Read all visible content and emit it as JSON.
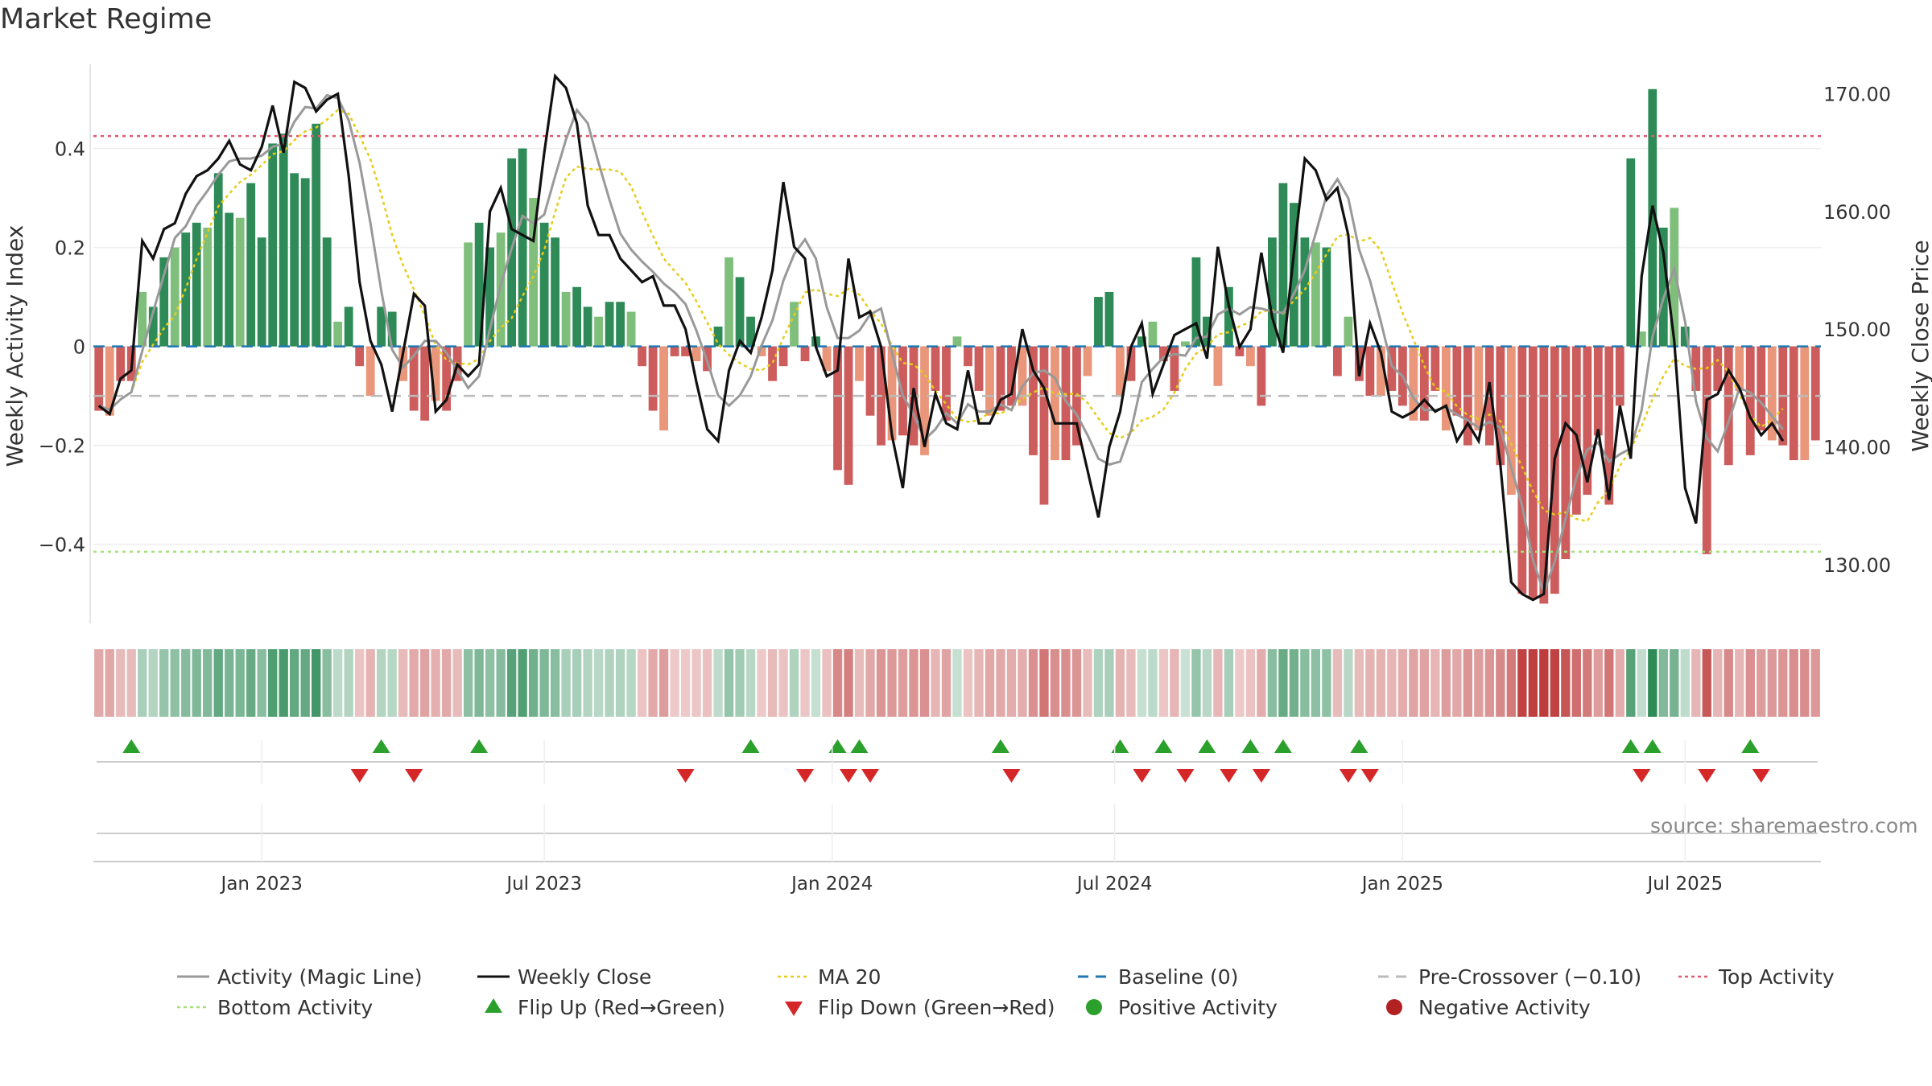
{
  "title": "Market Regime",
  "source": "source: sharemaestro.com",
  "colors": {
    "green_strong": "#2e8b57",
    "green_light": "#7fbf7b",
    "red_strong": "#cd5c5c",
    "red_light": "#e9967a",
    "close": "#111111",
    "activity": "#999999",
    "ma20": "#e6cc1a",
    "baseline": "#1f77b4",
    "precross": "#bbbbbb",
    "top": "#e05a6e",
    "bottom": "#a6e07a",
    "flip_up": "#2ca02c",
    "flip_down": "#d62728"
  },
  "chart_data": {
    "type": "bar",
    "title": "Market Regime",
    "ylabel": "Weekly Activity Index",
    "y2label": "Weekly Close Price",
    "ylim": [
      -0.56,
      0.57
    ],
    "y2lim": [
      125.0,
      172.5
    ],
    "yticks": [
      -0.4,
      -0.2,
      0,
      0.2,
      0.4
    ],
    "ytick_labels": [
      "−0.4",
      "−0.2",
      "0",
      "0.2",
      "0.4"
    ],
    "y2ticks": [
      130,
      140,
      150,
      160,
      170
    ],
    "y2tick_labels": [
      "130.00",
      "140.00",
      "150.00",
      "160.00",
      "170.00"
    ],
    "x_ticks": [
      {
        "label": "Jan 2023",
        "week": 15
      },
      {
        "label": "Jul 2023",
        "week": 41
      },
      {
        "label": "Jan 2024",
        "week": 67.5
      },
      {
        "label": "Jul 2024",
        "week": 93.5
      },
      {
        "label": "Jan 2025",
        "week": 120
      },
      {
        "label": "Jul 2025",
        "week": 146
      }
    ],
    "lines": {
      "baseline": 0,
      "pre_crossover": -0.1,
      "top_activity": 0.425,
      "bottom_activity": -0.415
    },
    "activity": [
      -0.13,
      -0.14,
      -0.07,
      -0.07,
      0.11,
      0.08,
      0.18,
      0.2,
      0.23,
      0.25,
      0.24,
      0.35,
      0.27,
      0.26,
      0.33,
      0.22,
      0.41,
      0.43,
      0.35,
      0.34,
      0.45,
      0.22,
      0.05,
      0.08,
      -0.04,
      -0.1,
      0.08,
      0.07,
      -0.07,
      -0.13,
      -0.15,
      -0.11,
      -0.13,
      -0.07,
      0.21,
      0.25,
      0.2,
      0.23,
      0.38,
      0.4,
      0.3,
      0.25,
      0.22,
      0.11,
      0.12,
      0.08,
      0.06,
      0.09,
      0.09,
      0.07,
      -0.04,
      -0.13,
      -0.17,
      -0.02,
      -0.02,
      -0.03,
      -0.05,
      0.04,
      0.18,
      0.14,
      0.06,
      -0.02,
      -0.07,
      -0.04,
      0.09,
      -0.03,
      0.02,
      -0.05,
      -0.25,
      -0.28,
      -0.07,
      -0.14,
      -0.2,
      -0.19,
      -0.18,
      -0.2,
      -0.22,
      -0.09,
      -0.15,
      0.02,
      -0.04,
      -0.09,
      -0.14,
      -0.13,
      -0.12,
      -0.12,
      -0.22,
      -0.32,
      -0.23,
      -0.23,
      -0.2,
      -0.06,
      0.1,
      0.11,
      -0.1,
      -0.07,
      0.02,
      0.05,
      -0.03,
      -0.09,
      0.01,
      0.18,
      0.06,
      -0.08,
      0.12,
      -0.02,
      -0.04,
      -0.12,
      0.22,
      0.33,
      0.29,
      0.22,
      0.21,
      0.2,
      -0.06,
      0.06,
      -0.07,
      -0.1,
      -0.1,
      -0.09,
      -0.12,
      -0.15,
      -0.15,
      -0.09,
      -0.17,
      -0.14,
      -0.2,
      -0.17,
      -0.2,
      -0.24,
      -0.3,
      -0.5,
      -0.51,
      -0.52,
      -0.5,
      -0.43,
      -0.34,
      -0.3,
      -0.18,
      -0.32,
      -0.12,
      0.38,
      0.03,
      0.52,
      0.24,
      0.28,
      0.04,
      -0.09,
      -0.42,
      -0.09,
      -0.24,
      -0.09,
      -0.22,
      -0.17,
      -0.19,
      -0.2,
      -0.23,
      -0.23,
      -0.19
    ],
    "weekly_close": [
      143.5,
      142.8,
      145.8,
      146.5,
      157.5,
      156.0,
      158.5,
      159.0,
      161.5,
      163.0,
      163.5,
      164.5,
      166.0,
      164.0,
      163.5,
      165.5,
      169.0,
      165.0,
      171.0,
      170.5,
      168.5,
      169.5,
      170.0,
      163.0,
      154.0,
      149.0,
      147.0,
      143.0,
      148.0,
      153.0,
      152.0,
      143.0,
      144.0,
      147.0,
      146.0,
      147.0,
      160.0,
      162.0,
      158.5,
      158.0,
      157.5,
      165.0,
      171.5,
      170.5,
      167.5,
      160.5,
      158.0,
      158.0,
      156.0,
      155.0,
      154.0,
      154.5,
      152.0,
      152.0,
      150.0,
      145.5,
      141.5,
      140.5,
      146.5,
      149.0,
      148.0,
      151.0,
      155.0,
      162.5,
      157.0,
      156.0,
      148.5,
      146.0,
      146.5,
      156.0,
      151.0,
      151.5,
      148.5,
      141.0,
      136.5,
      145.0,
      140.0,
      144.5,
      142.0,
      141.5,
      146.5,
      142.0,
      142.0,
      144.0,
      144.5,
      150.0,
      146.5,
      145.0,
      142.0,
      142.0,
      142.0,
      138.0,
      134.0,
      140.0,
      143.0,
      148.5,
      150.5,
      144.5,
      147.0,
      149.5,
      150.0,
      150.5,
      147.5,
      157.0,
      152.0,
      148.5,
      150.0,
      156.5,
      151.0,
      148.0,
      156.5,
      164.5,
      163.5,
      161.0,
      162.0,
      158.0,
      146.0,
      150.5,
      148.0,
      143.0,
      142.5,
      143.0,
      144.0,
      143.0,
      143.5,
      140.5,
      142.0,
      140.5,
      145.5,
      138.5,
      128.5,
      127.5,
      127.0,
      127.5,
      139.0,
      142.0,
      141.0,
      137.0,
      141.5,
      135.5,
      143.5,
      139.0,
      154.5,
      160.5,
      156.5,
      149.0,
      136.5,
      133.5,
      144.0,
      144.5,
      146.5,
      145.0,
      142.5,
      141.0,
      142.0,
      140.5
    ]
  },
  "flips": {
    "up_weeks": [
      3,
      26,
      35,
      60,
      68,
      70,
      83,
      94,
      98,
      102,
      106,
      109,
      116,
      141,
      143,
      152
    ],
    "down_weeks": [
      24,
      29,
      54,
      65,
      69,
      71,
      84,
      96,
      100,
      104,
      107,
      115,
      117,
      142,
      148,
      153
    ]
  },
  "legend": [
    {
      "name": "legend-activity",
      "label": "Activity (Magic Line)",
      "sym": "line",
      "color": "#999999"
    },
    {
      "name": "legend-close",
      "label": "Weekly Close",
      "sym": "line",
      "color": "#111111"
    },
    {
      "name": "legend-ma20",
      "label": "MA 20",
      "sym": "dotted",
      "color": "#e6cc1a"
    },
    {
      "name": "legend-baseline",
      "label": "Baseline (0)",
      "sym": "dashed",
      "color": "#1f77b4"
    },
    {
      "name": "legend-precross",
      "label": "Pre-Crossover (−0.10)",
      "sym": "dashed",
      "color": "#bbbbbb"
    },
    {
      "name": "legend-top",
      "label": "Top Activity",
      "sym": "dotted",
      "color": "#e05a6e"
    },
    {
      "name": "legend-bottom",
      "label": "Bottom Activity",
      "sym": "dotted",
      "color": "#a6e07a"
    },
    {
      "name": "legend-flip-up",
      "label": "Flip Up (Red→Green)",
      "sym": "tri-up",
      "color": "#2ca02c"
    },
    {
      "name": "legend-flip-down",
      "label": "Flip Down (Green→Red)",
      "sym": "tri-down",
      "color": "#d62728"
    },
    {
      "name": "legend-positive",
      "label": "Positive Activity",
      "sym": "dot",
      "color": "#2ca02c"
    },
    {
      "name": "legend-negative",
      "label": "Negative Activity",
      "sym": "dot",
      "color": "#b22222"
    }
  ]
}
